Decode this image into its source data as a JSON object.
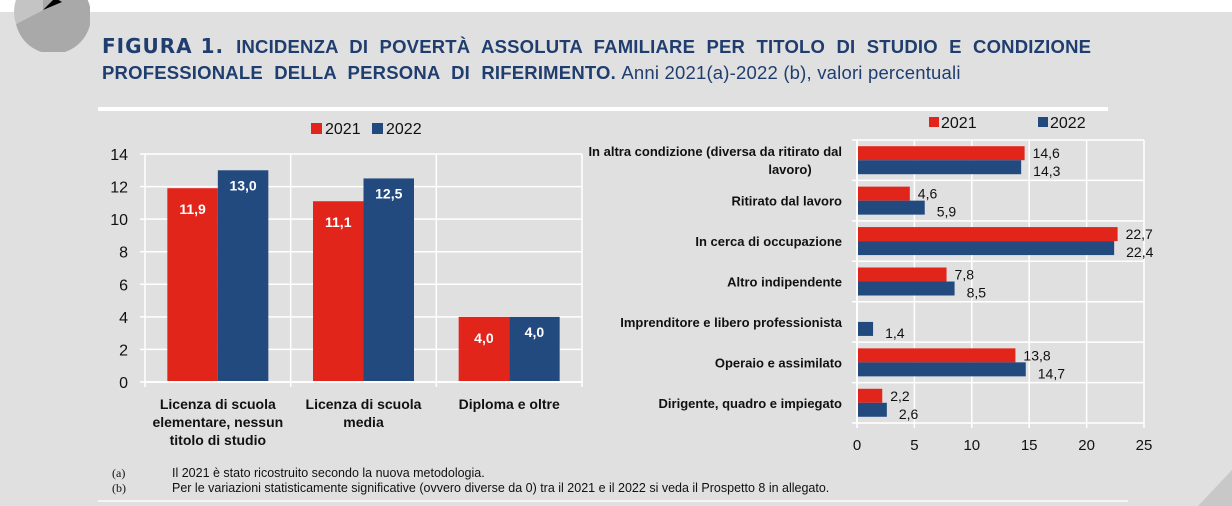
{
  "figure": {
    "label": "FIGURA 1.",
    "title_main": "INCIDENZA DI POVERTÀ ASSOLUTA FAMILIARE PER TITOLO DI STUDIO E CONDIZIONE PROFESSIONALE DELLA PERSONA DI RIFERIMENTO.",
    "title_sub": "Anni 2021(a)-2022 (b), valori percentuali"
  },
  "colors": {
    "series_2021": "#e2251b",
    "series_2022": "#234a7f",
    "grid": "#ffffff",
    "title": "#1f3d6e"
  },
  "chart_data": [
    {
      "type": "bar",
      "orientation": "vertical",
      "title": "",
      "categories": [
        "Licenza di scuola elementare, nessun titolo di studio",
        "Licenza di scuola media",
        "Diploma e oltre"
      ],
      "category_lines": [
        [
          "Licenza di scuola",
          "elementare, nessun",
          "titolo di studio"
        ],
        [
          "Licenza di scuola",
          "media"
        ],
        [
          "Diploma e oltre"
        ]
      ],
      "series": [
        {
          "name": "2021",
          "values": [
            11.9,
            11.1,
            4.0
          ],
          "labels": [
            "11,9",
            "11,1",
            "4,0"
          ]
        },
        {
          "name": "2022",
          "values": [
            13.0,
            12.5,
            4.0
          ],
          "labels": [
            "13,0",
            "12,5",
            "4,0"
          ]
        }
      ],
      "xlabel": "",
      "ylabel": "",
      "ylim": [
        0,
        14
      ],
      "yticks": [
        "0",
        "2",
        "4",
        "6",
        "8",
        "10",
        "12",
        "14"
      ],
      "grid": true,
      "legend": {
        "placement": "top-center",
        "entries": [
          "2021",
          "2022"
        ]
      }
    },
    {
      "type": "bar",
      "orientation": "horizontal",
      "title": "",
      "categories": [
        "In altra condizione (diversa da ritirato dal lavoro)",
        "Ritirato dal lavoro",
        "In cerca di occupazione",
        "Altro indipendente",
        "Imprenditore e libero professionista",
        "Operaio e assimilato",
        "Dirigente, quadro e impiegato"
      ],
      "category_lines": [
        [
          "In altra condizione (diversa da ritirato dal",
          "lavoro)"
        ],
        [
          "Ritirato dal lavoro"
        ],
        [
          "In cerca di occupazione"
        ],
        [
          "Altro indipendente"
        ],
        [
          "Imprenditore e libero professionista"
        ],
        [
          "Operaio e assimilato"
        ],
        [
          "Dirigente, quadro e impiegato"
        ]
      ],
      "series": [
        {
          "name": "2021",
          "values": [
            14.6,
            4.6,
            22.7,
            7.8,
            null,
            13.8,
            2.2
          ],
          "labels": [
            "14,6",
            "4,6",
            "22,7",
            "7,8",
            "",
            "13,8",
            "2,2"
          ]
        },
        {
          "name": "2022",
          "values": [
            14.3,
            5.9,
            22.4,
            8.5,
            1.4,
            14.7,
            2.6
          ],
          "labels": [
            "14,3",
            "5,9",
            "22,4",
            "8,5",
            "1,4",
            "14,7",
            "2,6"
          ]
        }
      ],
      "xlabel": "",
      "ylabel": "",
      "xlim": [
        0,
        25
      ],
      "xticks": [
        "0",
        "5",
        "10",
        "15",
        "20",
        "25"
      ],
      "grid": true,
      "legend": {
        "placement": "top-right",
        "entries": [
          "2021",
          "2022"
        ]
      }
    }
  ],
  "footnotes": [
    {
      "mark": "(a)",
      "text": "Il 2021 è stato ricostruito secondo la nuova metodologia."
    },
    {
      "mark": "(b)",
      "text": "Per le variazioni statisticamente significative (ovvero diverse da 0) tra il 2021 e il 2022 si veda il Prospetto 8 in allegato."
    }
  ]
}
